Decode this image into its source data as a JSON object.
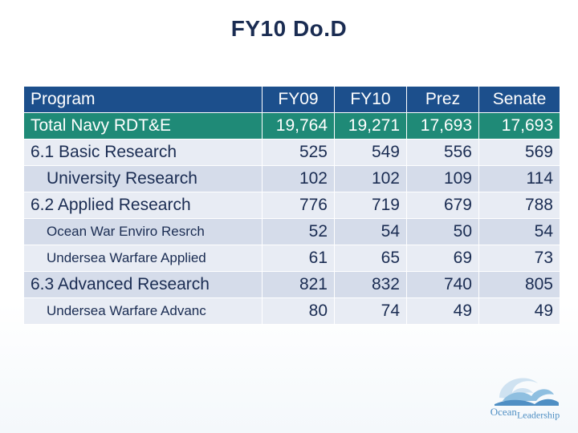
{
  "title": "FY10 Do.D",
  "table": {
    "header": [
      "Program",
      "FY09",
      "FY10",
      "Prez",
      "Senate"
    ],
    "rows": [
      {
        "program": "Total Navy RDT&E",
        "fy09": "19,764",
        "fy10": "19,271",
        "prez": "17,693",
        "senate": "17,693"
      },
      {
        "program": "6.1 Basic Research",
        "fy09": "525",
        "fy10": "549",
        "prez": "556",
        "senate": "569"
      },
      {
        "program": "University Research",
        "fy09": "102",
        "fy10": "102",
        "prez": "109",
        "senate": "114"
      },
      {
        "program": "6.2 Applied Research",
        "fy09": "776",
        "fy10": "719",
        "prez": "679",
        "senate": "788"
      },
      {
        "program": "Ocean War Enviro Resrch",
        "fy09": "52",
        "fy10": "54",
        "prez": "50",
        "senate": "54"
      },
      {
        "program": "Undersea Warfare Applied",
        "fy09": "61",
        "fy10": "65",
        "prez": "69",
        "senate": "73"
      },
      {
        "program": "6.3 Advanced Research",
        "fy09": "821",
        "fy10": "832",
        "prez": "740",
        "senate": "805"
      },
      {
        "program": "Undersea Warfare Advanc",
        "fy09": "80",
        "fy10": "74",
        "prez": "49",
        "senate": "49"
      }
    ]
  },
  "logo": {
    "line1": "Ocean",
    "line2": "Leadership",
    "icon": "wave-logo-icon"
  },
  "colors": {
    "header": "#1c4f8c",
    "total_row": "#1f8a77",
    "row_light": "#e8ecf4",
    "row_dark": "#d5dcea",
    "title": "#1a2c52",
    "logo": "#4f8fc4"
  }
}
